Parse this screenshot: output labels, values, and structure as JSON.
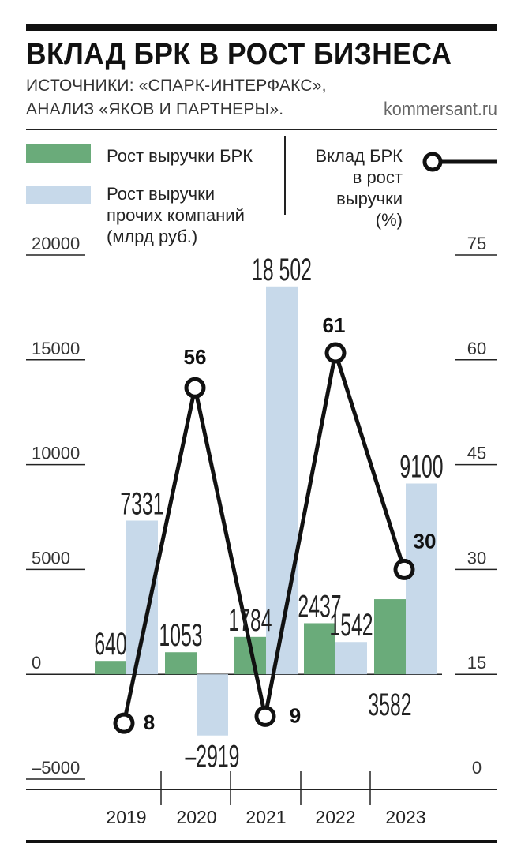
{
  "header": {
    "title": "ВКЛАД БРК В РОСТ БИЗНЕСА",
    "source_line1": "ИСТОЧНИКИ: «СПАРК-ИНТЕРФАКС»,",
    "source_line2": "АНАЛИЗ «ЯКОВ И ПАРТНЕРЫ».",
    "site": "kommersant.ru"
  },
  "legend": {
    "green_label": "Рост выручки БРК",
    "blue_label_line1": "Рост выручки",
    "blue_label_line2": "прочих компаний",
    "blue_label_line3": "(млрд руб.)",
    "line_label_line1": "Вклад БРК",
    "line_label_line2": "в рост",
    "line_label_line3": "выручки",
    "line_label_line4": "(%)"
  },
  "colors": {
    "green": "#6aab7a",
    "blue": "#c7d9ea",
    "line": "#111111",
    "axis": "#222222"
  },
  "chart_data": {
    "type": "bar",
    "categories": [
      "2019",
      "2020",
      "2021",
      "2022",
      "2023"
    ],
    "series": [
      {
        "name": "Рост выручки БРК",
        "axis": "left",
        "values": [
          640,
          1053,
          1784,
          2437,
          3582
        ],
        "labels": [
          "640",
          "1053",
          "1784",
          "2437",
          "3582"
        ]
      },
      {
        "name": "Рост выручки прочих компаний (млрд руб.)",
        "axis": "left",
        "values": [
          7331,
          -2919,
          18502,
          1542,
          9100
        ],
        "labels": [
          "7331",
          "–2919",
          "18 502",
          "1542",
          "9100"
        ]
      },
      {
        "name": "Вклад БРК в рост выручки (%)",
        "type": "line",
        "axis": "right",
        "values": [
          8,
          56,
          9,
          61,
          30
        ],
        "labels": [
          "8",
          "56",
          "9",
          "61",
          "30"
        ]
      }
    ],
    "y_left": {
      "ylim": [
        -5000,
        20000
      ],
      "ticks": [
        20000,
        15000,
        10000,
        5000,
        0,
        -5000
      ],
      "tick_labels": [
        "20000",
        "15000",
        "10000",
        "5000",
        "0",
        "–5000"
      ]
    },
    "y_right": {
      "ylim": [
        0,
        75
      ],
      "ticks": [
        75,
        60,
        45,
        30,
        15,
        0
      ],
      "tick_labels": [
        "75",
        "60",
        "45",
        "30",
        "15",
        "0"
      ]
    },
    "grid": false,
    "legend_position": "top"
  }
}
